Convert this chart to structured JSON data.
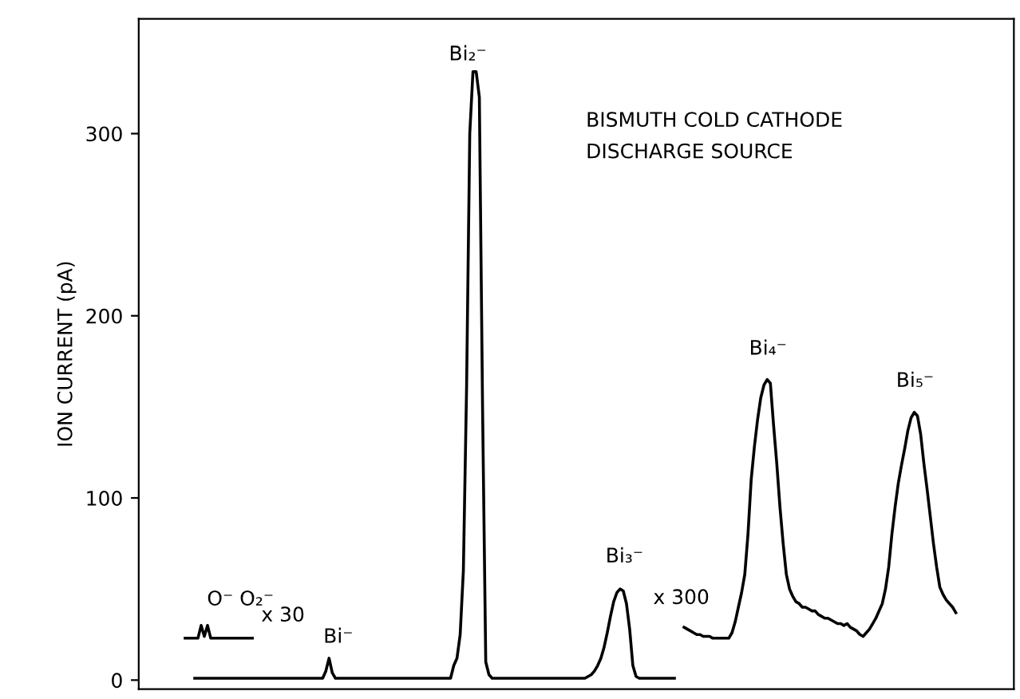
{
  "chart_data": {
    "type": "line",
    "ylabel": "ION CURRENT (pA)",
    "categories": [
      null,
      null,
      null,
      null,
      null,
      null,
      null,
      null,
      null,
      null,
      null,
      null,
      null,
      null,
      null,
      null,
      null,
      null,
      null,
      null,
      null,
      null,
      null,
      null,
      null,
      null,
      null,
      null,
      null,
      null,
      null,
      null,
      null,
      null,
      null,
      null,
      null,
      null,
      null,
      null,
      null,
      null,
      null,
      null,
      null,
      null,
      null,
      null,
      null,
      null,
      null,
      null,
      null,
      null,
      null,
      null,
      null,
      null,
      null,
      null,
      null,
      null,
      null,
      null,
      null,
      null,
      null,
      null,
      null,
      null,
      null,
      null,
      null,
      null,
      null,
      null,
      null,
      null,
      null,
      null,
      null,
      null,
      null,
      null,
      null,
      null,
      null,
      null,
      null,
      null,
      null,
      null,
      null,
      null,
      null,
      null,
      null,
      null,
      null,
      null,
      null,
      null,
      null,
      null,
      null,
      null,
      null,
      null,
      null,
      null,
      null,
      null,
      null,
      null,
      null,
      null,
      null,
      null,
      null,
      null,
      null,
      null,
      null,
      null,
      null,
      null,
      null,
      null,
      null,
      null,
      null,
      null,
      null,
      null,
      null,
      null,
      null,
      null,
      null,
      null,
      null,
      null,
      null,
      null,
      null,
      null,
      null,
      null,
      null,
      null,
      null,
      null,
      null,
      null,
      null,
      null,
      null,
      null,
      null,
      null,
      null,
      null,
      null,
      null,
      null,
      null,
      null,
      null,
      null,
      null,
      null,
      null,
      null,
      null,
      null,
      null,
      null,
      null,
      null,
      null,
      null,
      null,
      null,
      null,
      null,
      null,
      null,
      null,
      null,
      null,
      null,
      null,
      null,
      null,
      null,
      null,
      null,
      null,
      null,
      null,
      null,
      null,
      null,
      null,
      null,
      null,
      null,
      null,
      null,
      null,
      null,
      null,
      null,
      null,
      null,
      null,
      null,
      null,
      null,
      null,
      null,
      null,
      null,
      null,
      null,
      null,
      null,
      null,
      null,
      null,
      null,
      null,
      null,
      null,
      null,
      null,
      null,
      null,
      null,
      null,
      null,
      null
    ],
    "series": [
      {
        "color": "#000000",
        "values": [
          23,
          23,
          23,
          23,
          23,
          30,
          24,
          30,
          23,
          23,
          23,
          23,
          23,
          23,
          23,
          23,
          23,
          23,
          23,
          23,
          23,
          23,
          null,
          null,
          null,
          null,
          null,
          null,
          null,
          null,
          null,
          null,
          null,
          null,
          null,
          null,
          null,
          null,
          null,
          null,
          null,
          null,
          null,
          null,
          null,
          null,
          null,
          null,
          null,
          null,
          null,
          null,
          null,
          null,
          null,
          null,
          null,
          null,
          null,
          null,
          null,
          null,
          null,
          null,
          null,
          null,
          null,
          null,
          null,
          null,
          null,
          null,
          null,
          null,
          null,
          null,
          null,
          null,
          null,
          null,
          null,
          null,
          null,
          null,
          null,
          null,
          null,
          null,
          null,
          null,
          null,
          null,
          null,
          null,
          null,
          null,
          null,
          null,
          null,
          null,
          null,
          null,
          null,
          null,
          null,
          null,
          null,
          null,
          null,
          null,
          null,
          null,
          null,
          null,
          null,
          null,
          null,
          null,
          null,
          null,
          null,
          null,
          null,
          null,
          null,
          null,
          null,
          null,
          null,
          null,
          null,
          null,
          null,
          null,
          null,
          null,
          null,
          null,
          null,
          null,
          null,
          null,
          null,
          null,
          null,
          null,
          null,
          null,
          null,
          null,
          null,
          null,
          null,
          null,
          null,
          null,
          null,
          null,
          null,
          null,
          null,
          null,
          null,
          null,
          null,
          null,
          null,
          null,
          null,
          null,
          null,
          null,
          null,
          null,
          null,
          null,
          null,
          null,
          null,
          null,
          null,
          null,
          null,
          null,
          null,
          null,
          null,
          null,
          null,
          null,
          null,
          null,
          null,
          null,
          null,
          null,
          null,
          null,
          null,
          null,
          null,
          null,
          null,
          null,
          null,
          null,
          null,
          null,
          null,
          null,
          null,
          null,
          null,
          null,
          null,
          null,
          null,
          null,
          null,
          null,
          null,
          null,
          null,
          null,
          null,
          null,
          null,
          null,
          null,
          null,
          null,
          null,
          null,
          null,
          null,
          null,
          null,
          null,
          null,
          null,
          null,
          null
        ]
      },
      {
        "color": "#000000",
        "values": [
          null,
          null,
          null,
          1,
          1,
          1,
          1,
          1,
          1,
          1,
          1,
          1,
          1,
          1,
          1,
          1,
          1,
          1,
          1,
          1,
          1,
          1,
          1,
          1,
          1,
          1,
          1,
          1,
          1,
          1,
          1,
          1,
          1,
          1,
          1,
          1,
          1,
          1,
          1,
          1,
          1,
          1,
          1,
          1,
          5,
          12,
          4,
          1,
          1,
          1,
          1,
          1,
          1,
          1,
          1,
          1,
          1,
          1,
          1,
          1,
          1,
          1,
          1,
          1,
          1,
          1,
          1,
          1,
          1,
          1,
          1,
          1,
          1,
          1,
          1,
          1,
          1,
          1,
          1,
          1,
          1,
          1,
          1,
          1,
          8,
          12,
          25,
          60,
          160,
          300,
          334,
          334,
          320,
          150,
          10,
          3,
          1,
          1,
          1,
          1,
          1,
          1,
          1,
          1,
          1,
          1,
          1,
          1,
          1,
          1,
          1,
          1,
          1,
          1,
          1,
          1,
          1,
          1,
          1,
          1,
          1,
          1,
          1,
          1,
          1,
          1,
          2,
          3,
          5,
          8,
          12,
          18,
          26,
          35,
          43,
          48,
          50,
          49,
          42,
          28,
          8,
          2,
          1,
          1,
          1,
          1,
          1,
          1,
          1,
          1,
          1,
          1,
          1,
          1,
          null,
          null,
          null,
          null,
          null,
          null,
          null,
          null,
          null,
          null,
          null,
          null,
          null,
          null,
          null,
          null,
          null,
          null,
          null,
          null,
          null,
          null,
          null,
          null,
          null,
          null,
          null,
          null,
          null,
          null,
          null,
          null,
          null,
          null,
          null,
          null,
          null,
          null,
          null,
          null,
          null,
          null,
          null,
          null,
          null,
          null,
          null,
          null,
          null,
          null,
          null,
          null,
          null,
          null,
          null,
          null,
          null,
          null,
          null,
          null,
          null,
          null,
          null,
          null,
          null,
          null,
          null,
          null,
          null,
          null,
          null,
          null,
          null,
          null,
          null,
          null,
          null,
          null,
          null,
          null,
          null,
          null,
          null,
          null,
          null,
          null,
          null,
          null
        ]
      },
      {
        "color": "#000000",
        "values": [
          null,
          null,
          null,
          null,
          null,
          null,
          null,
          null,
          null,
          null,
          null,
          null,
          null,
          null,
          null,
          null,
          null,
          null,
          null,
          null,
          null,
          null,
          null,
          null,
          null,
          null,
          null,
          null,
          null,
          null,
          null,
          null,
          null,
          null,
          null,
          null,
          null,
          null,
          null,
          null,
          null,
          null,
          null,
          null,
          null,
          null,
          null,
          null,
          null,
          null,
          null,
          null,
          null,
          null,
          null,
          null,
          null,
          null,
          null,
          null,
          null,
          null,
          null,
          null,
          null,
          null,
          null,
          null,
          null,
          null,
          null,
          null,
          null,
          null,
          null,
          null,
          null,
          null,
          null,
          null,
          null,
          null,
          null,
          null,
          null,
          null,
          null,
          null,
          null,
          null,
          null,
          null,
          null,
          null,
          null,
          null,
          null,
          null,
          null,
          null,
          null,
          null,
          null,
          null,
          null,
          null,
          null,
          null,
          null,
          null,
          null,
          null,
          null,
          null,
          null,
          null,
          null,
          null,
          null,
          null,
          null,
          null,
          null,
          null,
          null,
          null,
          null,
          null,
          null,
          null,
          null,
          null,
          null,
          null,
          null,
          null,
          null,
          null,
          null,
          null,
          null,
          null,
          null,
          null,
          null,
          null,
          null,
          null,
          null,
          null,
          null,
          null,
          null,
          null,
          null,
          null,
          29,
          28,
          27,
          26,
          25,
          25,
          24,
          24,
          24,
          23,
          23,
          23,
          23,
          23,
          23,
          26,
          32,
          40,
          48,
          58,
          80,
          110,
          128,
          143,
          155,
          162,
          165,
          163,
          140,
          119,
          95,
          75,
          58,
          50,
          46,
          43,
          42,
          40,
          40,
          39,
          38,
          38,
          36,
          35,
          34,
          34,
          33,
          32,
          31,
          31,
          30,
          31,
          29,
          28,
          27,
          25,
          24,
          26,
          28,
          31,
          34,
          38,
          42,
          50,
          62,
          80,
          95,
          108,
          118,
          127,
          137,
          144,
          147,
          145,
          135,
          119,
          105,
          90,
          75,
          62,
          51,
          47,
          44,
          42,
          40,
          37
        ]
      }
    ],
    "annotations": [
      "O⁻ O₂⁻",
      "x 30",
      "Bi⁻",
      "Bi₂⁻",
      "Bi₃⁻",
      "x 300",
      "Bi₄⁻",
      "Bi₅⁻",
      "BISMUTH COLD CATHODE",
      "DISCHARGE SOURCE"
    ],
    "ylim": [
      -5,
      363
    ],
    "yticks": [
      0,
      100,
      200,
      300
    ],
    "tick_labels": "y",
    "grid": false,
    "legend": false
  }
}
